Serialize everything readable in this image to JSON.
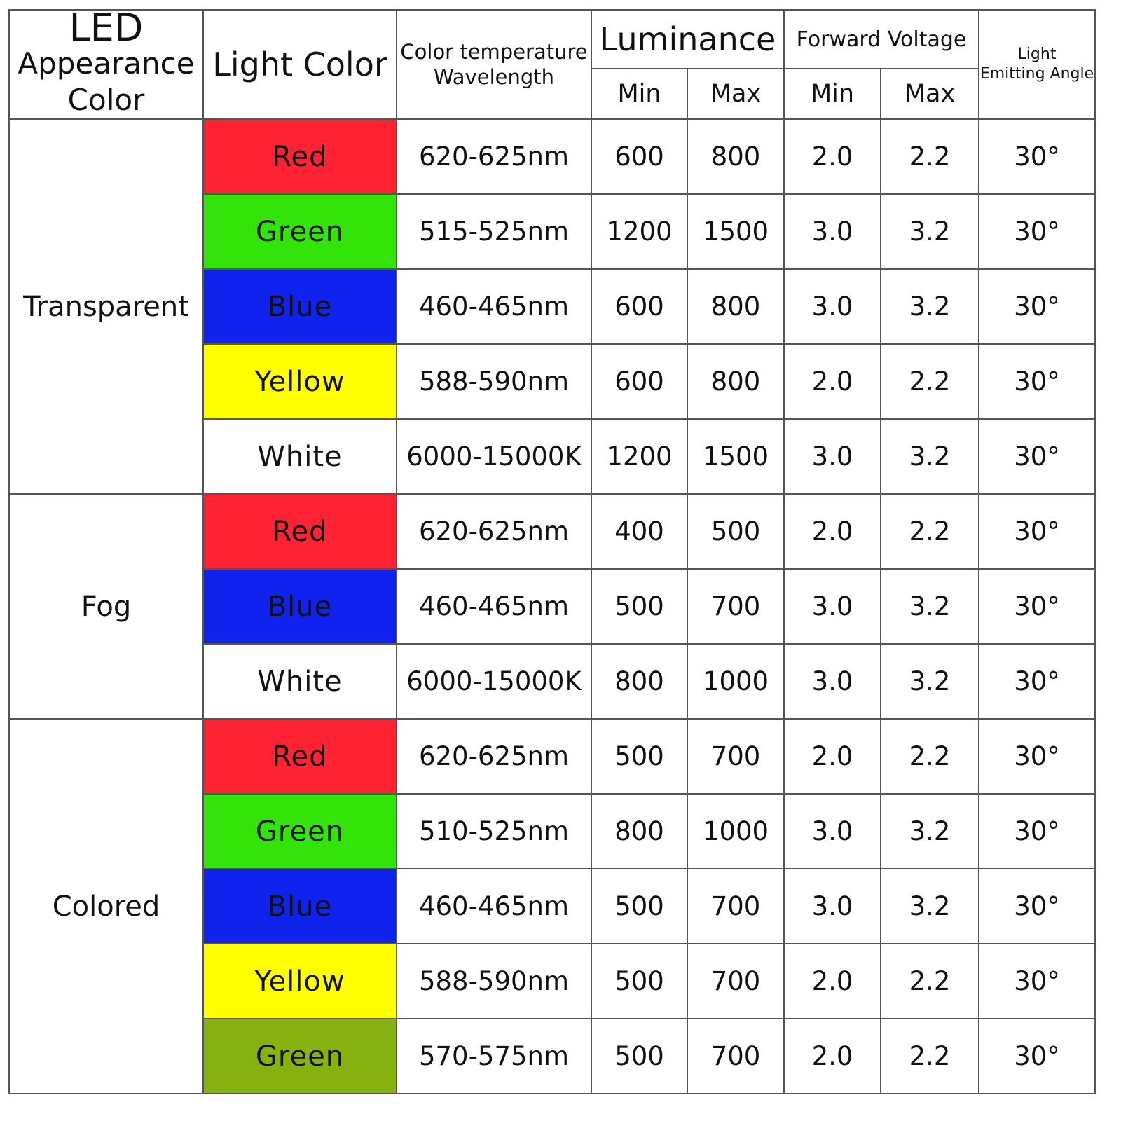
{
  "header": {
    "appearance_lines": [
      "LED",
      "Appearance",
      "Color"
    ],
    "light_color": "Light Color",
    "temperature_lines": [
      "Color temperature",
      "Wavelength"
    ],
    "luminance": "Luminance",
    "forward_voltage": "Forward Voltage",
    "angle_lines": [
      "Light",
      "Emitting Angle"
    ],
    "luminance_min": "Min",
    "luminance_max": "Max",
    "voltage_min": "Min",
    "voltage_max": "Max"
  },
  "groups": [
    {
      "name": "Transparent",
      "rows": [
        {
          "color": "Red",
          "swatch": "#ff2233",
          "wavelength": "620-625nm",
          "lum_min": "600",
          "lum_max": "800",
          "v_min": "2.0",
          "v_max": "2.2",
          "angle": "30°"
        },
        {
          "color": "Green",
          "swatch": "#33e40a",
          "wavelength": "515-525nm",
          "lum_min": "1200",
          "lum_max": "1500",
          "v_min": "3.0",
          "v_max": "3.2",
          "angle": "30°"
        },
        {
          "color": "Blue",
          "swatch": "#0f22ee",
          "wavelength": "460-465nm",
          "lum_min": "600",
          "lum_max": "800",
          "v_min": "3.0",
          "v_max": "3.2",
          "angle": "30°"
        },
        {
          "color": "Yellow",
          "swatch": "#ffff00",
          "wavelength": "588-590nm",
          "lum_min": "600",
          "lum_max": "800",
          "v_min": "2.0",
          "v_max": "2.2",
          "angle": "30°"
        },
        {
          "color": "White",
          "swatch": "#ffffff",
          "wavelength": "6000-15000K",
          "lum_min": "1200",
          "lum_max": "1500",
          "v_min": "3.0",
          "v_max": "3.2",
          "angle": "30°"
        }
      ]
    },
    {
      "name": "Fog",
      "rows": [
        {
          "color": "Red",
          "swatch": "#ff2233",
          "wavelength": "620-625nm",
          "lum_min": "400",
          "lum_max": "500",
          "v_min": "2.0",
          "v_max": "2.2",
          "angle": "30°"
        },
        {
          "color": "Blue",
          "swatch": "#0f22ee",
          "wavelength": "460-465nm",
          "lum_min": "500",
          "lum_max": "700",
          "v_min": "3.0",
          "v_max": "3.2",
          "angle": "30°"
        },
        {
          "color": "White",
          "swatch": "#ffffff",
          "wavelength": "6000-15000K",
          "lum_min": "800",
          "lum_max": "1000",
          "v_min": "3.0",
          "v_max": "3.2",
          "angle": "30°"
        }
      ]
    },
    {
      "name": "Colored",
      "rows": [
        {
          "color": "Red",
          "swatch": "#ff2233",
          "wavelength": "620-625nm",
          "lum_min": "500",
          "lum_max": "700",
          "v_min": "2.0",
          "v_max": "2.2",
          "angle": "30°"
        },
        {
          "color": "Green",
          "swatch": "#33e40a",
          "wavelength": "510-525nm",
          "lum_min": "800",
          "lum_max": "1000",
          "v_min": "3.0",
          "v_max": "3.2",
          "angle": "30°"
        },
        {
          "color": "Blue",
          "swatch": "#0f22ee",
          "wavelength": "460-465nm",
          "lum_min": "500",
          "lum_max": "700",
          "v_min": "3.0",
          "v_max": "3.2",
          "angle": "30°"
        },
        {
          "color": "Yellow",
          "swatch": "#ffff00",
          "wavelength": "588-590nm",
          "lum_min": "500",
          "lum_max": "700",
          "v_min": "2.0",
          "v_max": "2.2",
          "angle": "30°"
        },
        {
          "color": "Green",
          "swatch": "#85b20e",
          "wavelength": "570-575nm",
          "lum_min": "500",
          "lum_max": "700",
          "v_min": "2.0",
          "v_max": "2.2",
          "angle": "30°"
        }
      ]
    }
  ]
}
